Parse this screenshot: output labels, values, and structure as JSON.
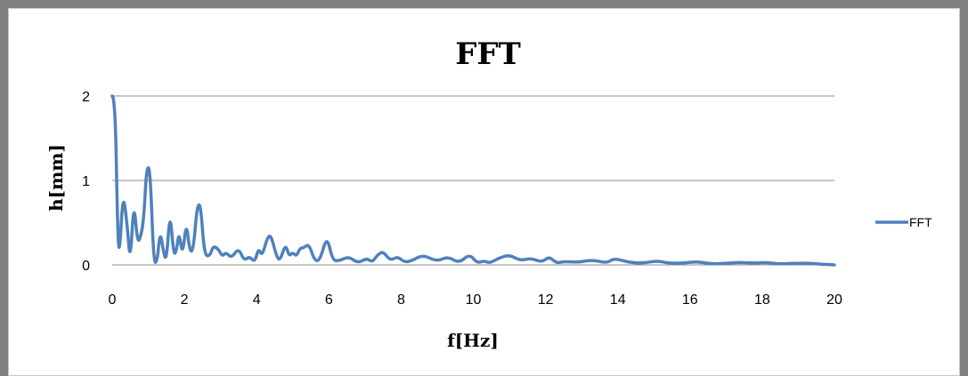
{
  "chart_data": {
    "type": "line",
    "title": "FFT",
    "xlabel": "f[Hz]",
    "ylabel": "h[mm]",
    "xlim": [
      0,
      20
    ],
    "ylim": [
      0,
      2
    ],
    "xticks": [
      "0",
      "2",
      "4",
      "6",
      "8",
      "10",
      "12",
      "14",
      "16",
      "18",
      "20"
    ],
    "yticks": [
      "0",
      "1",
      "2"
    ],
    "grid": "horizontal major gridlines",
    "legend_position": "right",
    "colors": {
      "series": "#4f81bd",
      "grid": "#8c8c8c",
      "frame": "#7f7f7f"
    },
    "series": [
      {
        "name": "FFT",
        "x": [
          0.0,
          0.08,
          0.15,
          0.2,
          0.3,
          0.42,
          0.5,
          0.6,
          0.7,
          0.8,
          0.88,
          0.95,
          1.05,
          1.15,
          1.25,
          1.3,
          1.35,
          1.4,
          1.5,
          1.6,
          1.7,
          1.78,
          1.85,
          1.95,
          2.05,
          2.15,
          2.25,
          2.35,
          2.45,
          2.55,
          2.7,
          2.8,
          2.95,
          3.05,
          3.15,
          3.3,
          3.5,
          3.65,
          3.8,
          3.95,
          4.05,
          4.15,
          4.3,
          4.4,
          4.55,
          4.65,
          4.8,
          4.9,
          5.0,
          5.1,
          5.2,
          5.3,
          5.45,
          5.6,
          5.75,
          5.95,
          6.1,
          6.3,
          6.55,
          6.8,
          7.05,
          7.2,
          7.35,
          7.5,
          7.7,
          7.9,
          8.1,
          8.3,
          8.6,
          9.0,
          9.3,
          9.6,
          9.9,
          10.1,
          10.3,
          10.45,
          10.7,
          11.0,
          11.3,
          11.6,
          11.9,
          12.1,
          12.3,
          12.5,
          12.9,
          13.3,
          13.7,
          13.9,
          14.3,
          14.7,
          15.1,
          15.4,
          15.8,
          16.2,
          16.6,
          17.0,
          17.4,
          17.8,
          18.1,
          18.5,
          18.9,
          19.3,
          19.6,
          20.0
        ],
        "values": [
          2.0,
          2.0,
          0.4,
          0.1,
          0.88,
          0.45,
          0.02,
          0.77,
          0.25,
          0.35,
          0.57,
          1.15,
          1.15,
          0.01,
          0.05,
          0.3,
          0.35,
          0.2,
          0.02,
          0.65,
          0.12,
          0.16,
          0.4,
          0.1,
          0.52,
          0.15,
          0.18,
          0.7,
          0.72,
          0.12,
          0.1,
          0.23,
          0.18,
          0.1,
          0.15,
          0.08,
          0.2,
          0.05,
          0.1,
          0.03,
          0.2,
          0.1,
          0.33,
          0.35,
          0.1,
          0.05,
          0.25,
          0.1,
          0.15,
          0.1,
          0.2,
          0.2,
          0.25,
          0.05,
          0.05,
          0.35,
          0.05,
          0.05,
          0.1,
          0.02,
          0.08,
          0.03,
          0.12,
          0.16,
          0.05,
          0.1,
          0.03,
          0.05,
          0.12,
          0.04,
          0.1,
          0.02,
          0.13,
          0.02,
          0.05,
          0.02,
          0.08,
          0.12,
          0.05,
          0.08,
          0.03,
          0.1,
          0.02,
          0.04,
          0.03,
          0.06,
          0.02,
          0.08,
          0.03,
          0.02,
          0.05,
          0.02,
          0.02,
          0.04,
          0.01,
          0.02,
          0.03,
          0.02,
          0.03,
          0.01,
          0.02,
          0.02,
          0.01,
          0.0
        ]
      }
    ]
  }
}
